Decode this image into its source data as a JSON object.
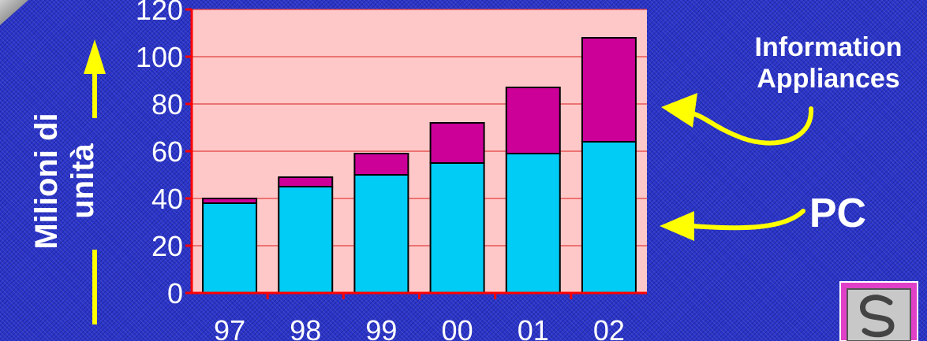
{
  "chart_data": {
    "type": "bar",
    "stacked": true,
    "categories": [
      "97",
      "98",
      "99",
      "00",
      "01",
      "02"
    ],
    "series": [
      {
        "name": "PC",
        "values": [
          38,
          45,
          50,
          55,
          59,
          64
        ],
        "color": "#00ccf5"
      },
      {
        "name": "Information Appliances",
        "values": [
          2,
          4,
          9,
          17,
          28,
          44
        ],
        "color": "#cc0099"
      }
    ],
    "ylabel_lines": [
      "Milioni di",
      "unità"
    ],
    "yticks": [
      0,
      20,
      40,
      60,
      80,
      100,
      120
    ],
    "ylim": [
      0,
      120
    ],
    "grid": true,
    "plot_background": "#ffc8c8",
    "gridline_color": "#e04040",
    "axis_color": "#ff0000",
    "arrow_color": "#ffff00"
  },
  "logo_icon": "s-logo-icon"
}
